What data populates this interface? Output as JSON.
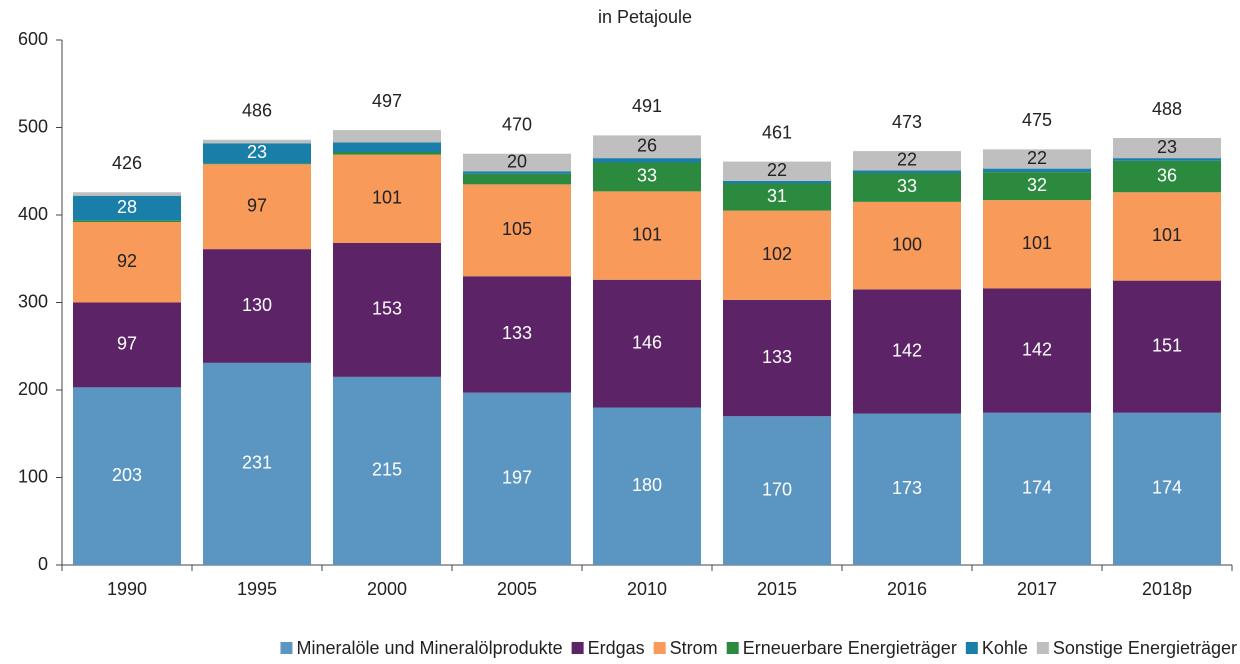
{
  "chart_data": {
    "type": "stacked-bar",
    "title": "in Petajoule",
    "categories": [
      "1990",
      "1995",
      "2000",
      "2005",
      "2010",
      "2015",
      "2016",
      "2017",
      "2018p"
    ],
    "series": [
      {
        "name": "Mineralöle und Mineralölprodukte",
        "color": "#5b96c2",
        "label_color": "#ffffff",
        "values": [
          203,
          231,
          215,
          197,
          180,
          170,
          173,
          174,
          174
        ],
        "labeled": [
          true,
          true,
          true,
          true,
          true,
          true,
          true,
          true,
          true
        ]
      },
      {
        "name": "Erdgas",
        "color": "#5c2466",
        "label_color": "#ffffff",
        "values": [
          97,
          130,
          153,
          133,
          146,
          133,
          142,
          142,
          151
        ],
        "labeled": [
          true,
          true,
          true,
          true,
          true,
          true,
          true,
          true,
          true
        ]
      },
      {
        "name": "Strom",
        "color": "#f79a5a",
        "label_color": "#222222",
        "values": [
          92,
          97,
          101,
          105,
          101,
          102,
          100,
          101,
          101
        ],
        "labeled": [
          true,
          true,
          true,
          true,
          true,
          true,
          true,
          true,
          true
        ]
      },
      {
        "name": "Erneuerbare Energieträger",
        "color": "#2c8a3f",
        "label_color": "#ffffff",
        "values": [
          2,
          1,
          3,
          12,
          33,
          31,
          33,
          32,
          36
        ],
        "labeled": [
          false,
          false,
          false,
          false,
          true,
          true,
          true,
          true,
          true
        ]
      },
      {
        "name": "Kohle",
        "color": "#1a7fa8",
        "label_color": "#ffffff",
        "values": [
          28,
          23,
          11,
          3,
          5,
          3,
          3,
          4,
          3
        ],
        "labeled": [
          true,
          true,
          false,
          false,
          false,
          false,
          false,
          false,
          false
        ]
      },
      {
        "name": "Sonstige Energieträger",
        "color": "#bfbfbf",
        "label_color": "#222222",
        "values": [
          4,
          4,
          14,
          20,
          26,
          22,
          22,
          22,
          23
        ],
        "labeled": [
          false,
          false,
          false,
          true,
          true,
          true,
          true,
          true,
          true
        ]
      }
    ],
    "totals": [
      426,
      486,
      497,
      470,
      491,
      461,
      473,
      475,
      488
    ],
    "ylim": [
      0,
      600
    ],
    "yticks": [
      0,
      100,
      200,
      300,
      400,
      500,
      600
    ],
    "legend": "bottom"
  }
}
